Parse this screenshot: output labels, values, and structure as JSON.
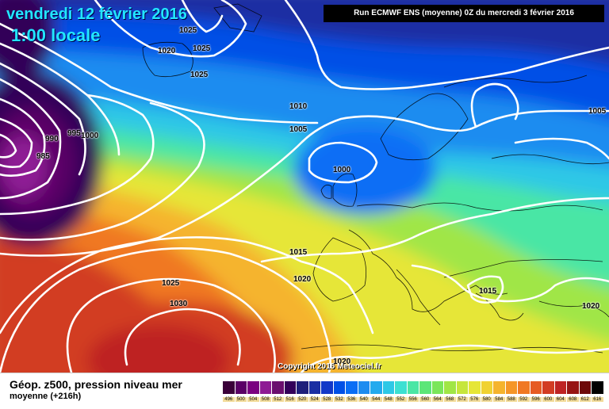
{
  "header": {
    "date": "vendredi 12 février 2016",
    "time": "1:00 locale",
    "run": "Run ECMWF ENS (moyenne) 0Z du mercredi 3 février 2016"
  },
  "copyright": "Copyright 2016 Meteociel.fr",
  "legend": {
    "title": "Géop. z500, pression niveau mer",
    "subtitle": "moyenne  (+216h)",
    "scale_labels": [
      "496",
      "500",
      "504",
      "508",
      "512",
      "516",
      "520",
      "524",
      "528",
      "532",
      "536",
      "540",
      "544",
      "548",
      "552",
      "556",
      "560",
      "564",
      "568",
      "572",
      "576",
      "580",
      "584",
      "588",
      "592",
      "596",
      "600",
      "604",
      "608",
      "612",
      "616"
    ],
    "scale_colors": [
      "#3a0039",
      "#5a0066",
      "#7a0080",
      "#8e1a94",
      "#6a0e6e",
      "#330059",
      "#1e1f7a",
      "#1a2fa3",
      "#1238c8",
      "#0050e6",
      "#0a6ef5",
      "#1e8cf0",
      "#22aaee",
      "#2ec8e6",
      "#3ce0d2",
      "#4ae6a5",
      "#5ce678",
      "#7ae65a",
      "#a0e646",
      "#c6e63c",
      "#e6e637",
      "#f0d232",
      "#f5b42d",
      "#f59628",
      "#f07823",
      "#e65a23",
      "#d23c23",
      "#be2323",
      "#961414",
      "#6e0a0a",
      "#000000"
    ]
  },
  "isobars": [
    {
      "text": "1025",
      "id": "a"
    },
    {
      "text": "1020",
      "id": "b"
    },
    {
      "text": "1025",
      "id": "c"
    },
    {
      "text": "1025",
      "id": "d"
    },
    {
      "text": "1010",
      "id": "e"
    },
    {
      "text": "1005",
      "id": "f"
    },
    {
      "text": "1000",
      "id": "g"
    },
    {
      "text": "995",
      "id": "h"
    },
    {
      "text": "990",
      "id": "i"
    },
    {
      "text": "985",
      "id": "j"
    },
    {
      "text": "1000",
      "id": "k"
    },
    {
      "text": "1005",
      "id": "l"
    },
    {
      "text": "1015",
      "id": "m"
    },
    {
      "text": "1020",
      "id": "n"
    },
    {
      "text": "1025",
      "id": "o"
    },
    {
      "text": "1030",
      "id": "p"
    },
    {
      "text": "1015",
      "id": "q"
    },
    {
      "text": "1020",
      "id": "r"
    },
    {
      "text": "1020",
      "id": "s"
    }
  ]
}
